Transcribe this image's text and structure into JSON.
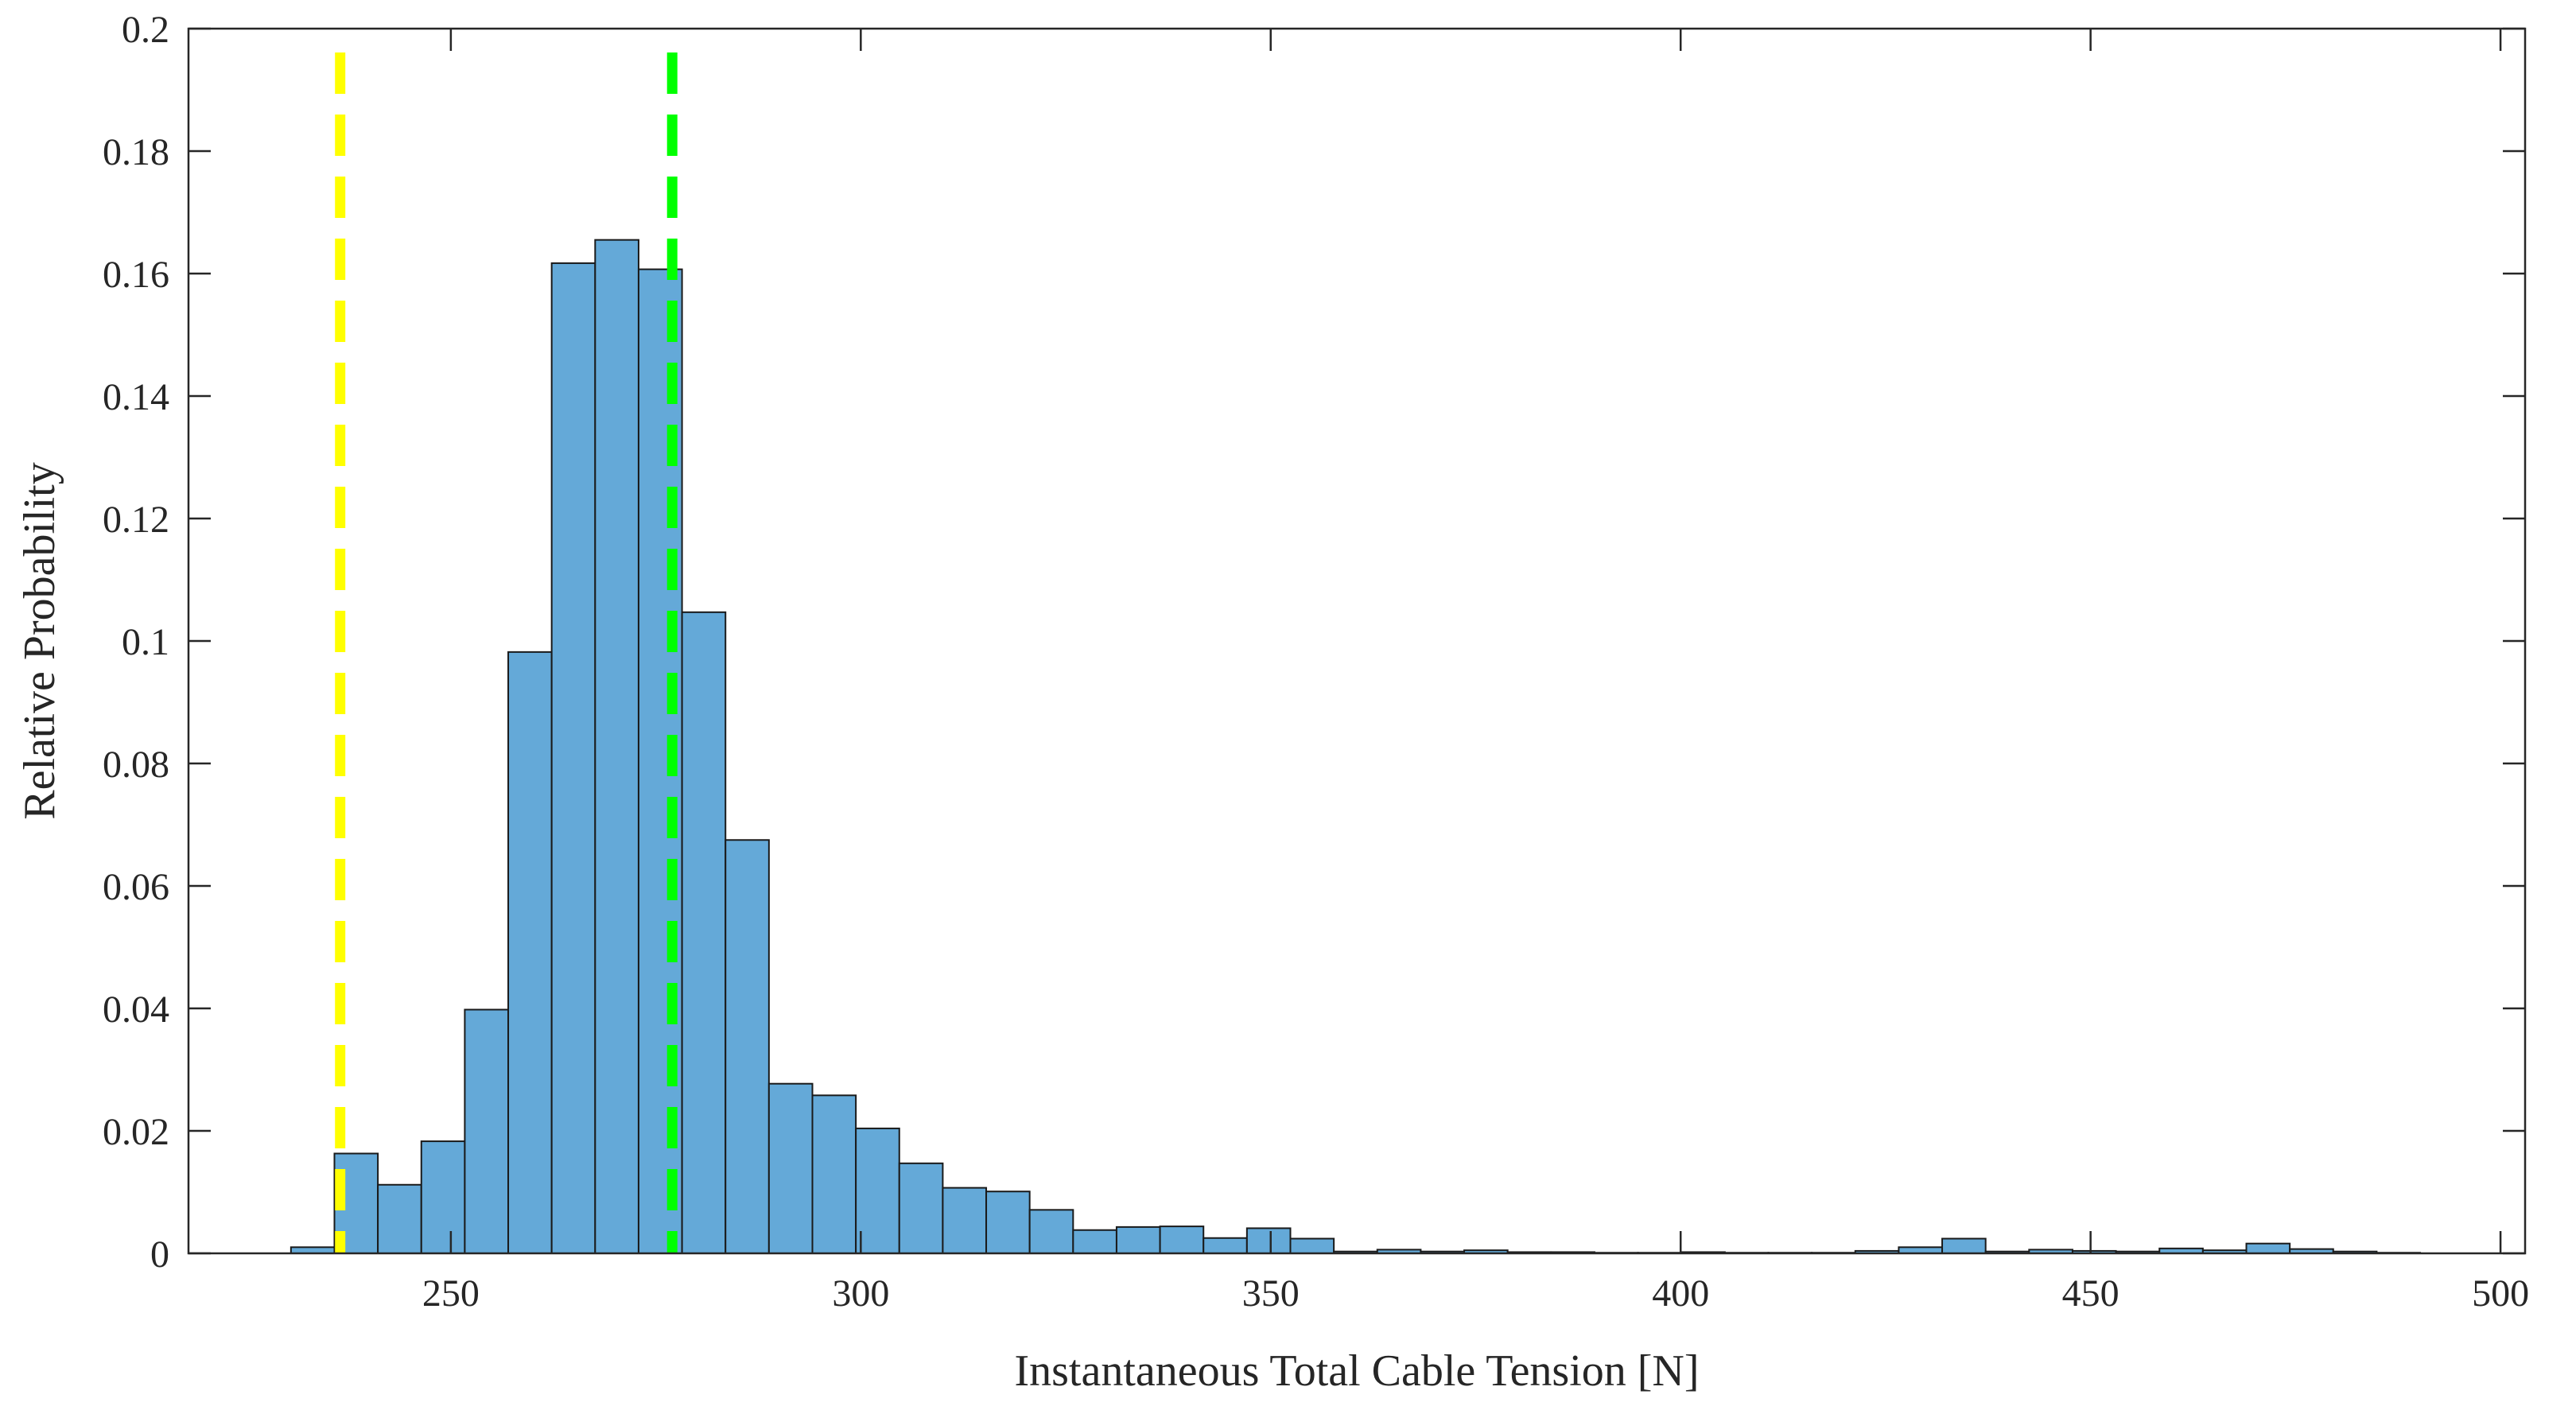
{
  "chart_data": {
    "type": "bar",
    "title": "",
    "xlabel": "Instantaneous Total Cable Tension  [N]",
    "ylabel": "Relative Probability",
    "xlim": [
      218,
      503
    ],
    "ylim": [
      0,
      0.2
    ],
    "xticks": [
      250,
      300,
      350,
      400,
      450,
      500
    ],
    "yticks": [
      0,
      0.02,
      0.04,
      0.06,
      0.08,
      0.1,
      0.12,
      0.14,
      0.16,
      0.18,
      0.2
    ],
    "xtick_labels": [
      "250",
      "300",
      "350",
      "400",
      "450",
      "500"
    ],
    "ytick_labels": [
      "0",
      "0.02",
      "0.04",
      "0.06",
      "0.08",
      "0.1",
      "0.12",
      "0.14",
      "0.16",
      "0.18",
      "0.2"
    ],
    "grid": false,
    "bin_edges": [
      230.5,
      235.8,
      241.1,
      246.4,
      251.7,
      257.0,
      262.3,
      267.6,
      272.9,
      278.2,
      283.5,
      288.8,
      294.1,
      299.4,
      304.7,
      310.0,
      315.3,
      320.6,
      325.9,
      331.2,
      336.5,
      341.8,
      347.1,
      352.4,
      357.7,
      363.0,
      368.3,
      373.6,
      378.9,
      384.2,
      389.5,
      394.8,
      400.1,
      405.4,
      410.7,
      416.0,
      421.3,
      426.6,
      431.9,
      437.2,
      442.5,
      447.8,
      453.1,
      458.4,
      463.7,
      469.0,
      474.3,
      479.6,
      484.9,
      490.2
    ],
    "values": [
      0.001,
      0.0163,
      0.0112,
      0.0183,
      0.0398,
      0.0982,
      0.1617,
      0.1655,
      0.1607,
      0.1047,
      0.0675,
      0.0277,
      0.0258,
      0.0204,
      0.0147,
      0.0107,
      0.0101,
      0.0071,
      0.0038,
      0.0043,
      0.0044,
      0.0025,
      0.0041,
      0.0024,
      0.0003,
      0.0006,
      0.0003,
      0.0005,
      0.0002,
      0.0002,
      0.0001,
      0.0001,
      0.0002,
      0.0001,
      0.0001,
      0.0001,
      0.0004,
      0.001,
      0.0024,
      0.0003,
      0.0006,
      0.0004,
      0.0003,
      0.0008,
      0.0005,
      0.0016,
      0.0007,
      0.0003,
      0.0001
    ],
    "bar_color": "#64a9d8",
    "reference_lines": [
      {
        "x": 236.5,
        "color": "#ffff00",
        "style": "dashed"
      },
      {
        "x": 277.0,
        "color": "#00ff00",
        "style": "dashed"
      }
    ]
  }
}
